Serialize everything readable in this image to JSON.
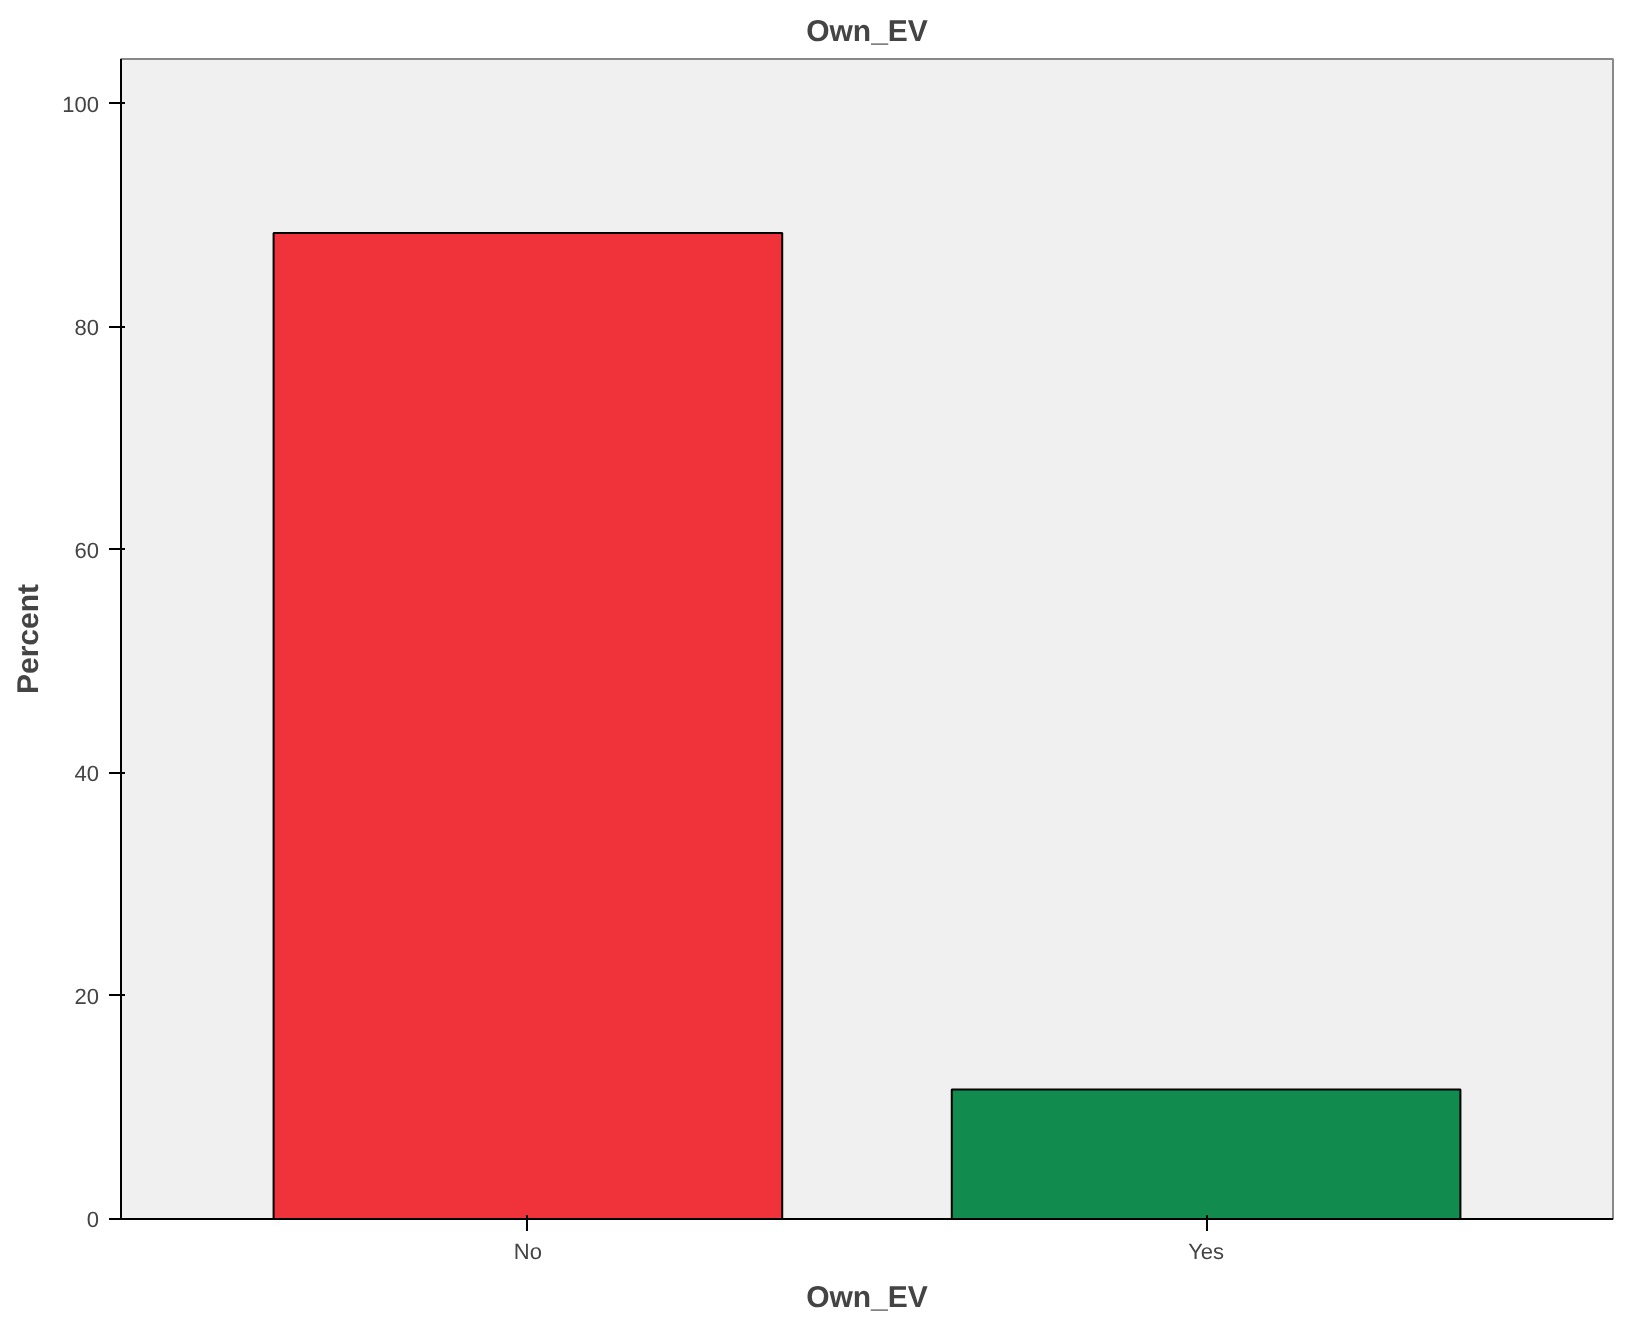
{
  "chart_data": {
    "type": "bar",
    "title": "Own_EV",
    "xlabel": "Own_EV",
    "ylabel": "Percent",
    "categories": [
      "No",
      "Yes"
    ],
    "values": [
      88.4,
      11.6
    ],
    "colors": [
      "#f0323a",
      "#118c4e"
    ],
    "ylim": [
      0,
      104
    ],
    "yticks": [
      0,
      20,
      40,
      60,
      80,
      100
    ],
    "grid": false
  }
}
